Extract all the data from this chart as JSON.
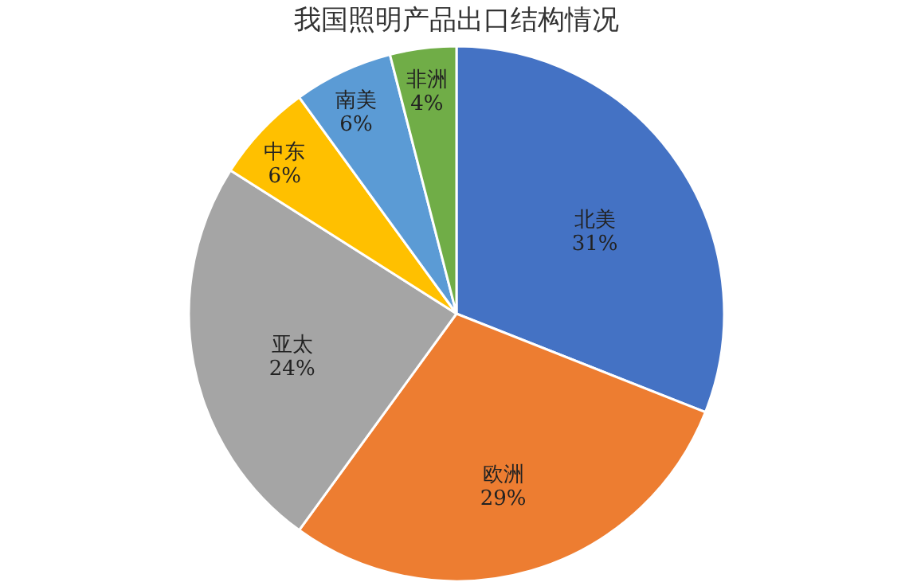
{
  "chart_data": {
    "type": "pie",
    "title": "我国照明产品出口结构情况",
    "categories": [
      "北美",
      "欧洲",
      "亚太",
      "中东",
      "南美",
      "非洲"
    ],
    "values": [
      31,
      29,
      24,
      6,
      6,
      4
    ],
    "colors": [
      "#4472c4",
      "#ed7d31",
      "#a5a5a5",
      "#ffc000",
      "#5b9bd5",
      "#70ad47"
    ],
    "value_labels": [
      "31%",
      "29%",
      "24%",
      "6%",
      "6%",
      "4%"
    ],
    "legend": false
  }
}
